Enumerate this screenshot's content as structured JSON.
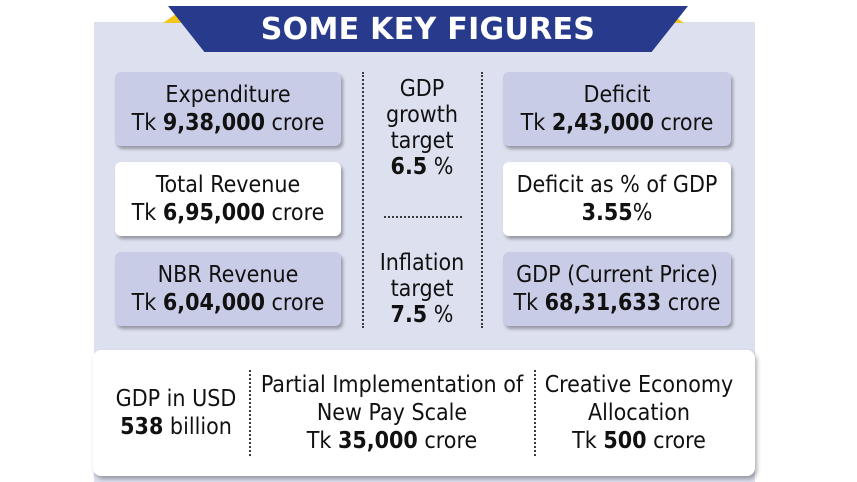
{
  "title": "SOME KEY FIGURES",
  "left_cards": [
    {
      "label": "Expenditure",
      "prefix": "Tk ",
      "value": "9,38,000",
      "suffix": " crore"
    },
    {
      "label": "Total Revenue",
      "prefix": "Tk ",
      "value": "6,95,000",
      "suffix": " crore"
    },
    {
      "label": "NBR Revenue",
      "prefix": "Tk ",
      "value": "6,04,000",
      "suffix": " crore"
    }
  ],
  "center": {
    "gdp_growth": {
      "line1": "GDP",
      "line2": "growth",
      "line3": "target",
      "value": "6.5",
      "unit": " %"
    },
    "inflation": {
      "line1": "Inflation",
      "line2": "target",
      "value": "7.5",
      "unit": " %"
    }
  },
  "right_cards": [
    {
      "label": "Deficit",
      "prefix": "Tk ",
      "value": "2,43,000",
      "suffix": " crore"
    },
    {
      "label": "Deficit as % of GDP",
      "prefix": "",
      "value": "3.55",
      "suffix": "%"
    },
    {
      "label": "GDP (Current Price)",
      "prefix": "Tk ",
      "value": "68,31,633",
      "suffix": " crore"
    }
  ],
  "bottom": [
    {
      "line1": "GDP in USD",
      "line2": "",
      "value": "538",
      "suffix": " billion",
      "prefix": ""
    },
    {
      "line1": "Partial Implementation of",
      "line2": "New Pay Scale",
      "prefix": "Tk ",
      "value": "35,000",
      "suffix": " crore"
    },
    {
      "line1": "Creative Economy",
      "line2": "Allocation",
      "prefix": "Tk ",
      "value": "500",
      "suffix": " crore"
    }
  ],
  "colors": {
    "banner": "#273a8c",
    "accent": "#f4c51c",
    "panel": "#dde0ef",
    "card_shaded": "#c9cce6"
  }
}
